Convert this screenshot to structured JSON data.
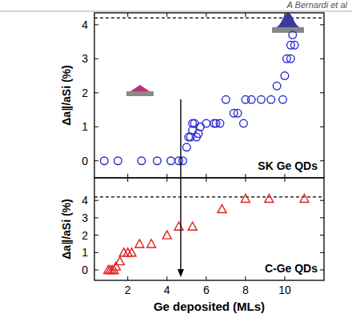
{
  "header": "A Bernardi et al",
  "chart_data": [
    {
      "type": "scatter",
      "ylabel": "Δa∥/aSi (%)",
      "annotation": "SK Ge QDs",
      "xlim": [
        0.3,
        12
      ],
      "xticks": [
        2,
        4,
        6,
        8,
        10
      ],
      "ylim": [
        -0.5,
        4.35
      ],
      "yticks": [
        0,
        1,
        2,
        3,
        4
      ],
      "tick_labels": "y",
      "reference_line": 4.2,
      "arrow_x": 4.7,
      "series": [
        {
          "name": "SK Ge QDs",
          "color": "#2b2bd0",
          "marker": "circle",
          "x": [
            0.8,
            1.5,
            2.7,
            3.5,
            4.2,
            4.6,
            4.8,
            5.0,
            5.1,
            5.2,
            5.3,
            5.3,
            5.4,
            5.5,
            5.6,
            5.7,
            6.0,
            6.4,
            6.5,
            6.7,
            7.0,
            7.4,
            7.6,
            7.9,
            8.0,
            8.3,
            8.8,
            9.3,
            9.6,
            9.9,
            10.0,
            10.1,
            10.3,
            10.3,
            10.4,
            10.5
          ],
          "values": [
            0,
            0,
            0,
            0,
            0,
            0,
            0,
            0.4,
            0.7,
            0.7,
            0.9,
            1.1,
            1.1,
            0.7,
            0.8,
            1.0,
            1.1,
            1.1,
            1.1,
            1.1,
            1.8,
            1.4,
            1.4,
            1.1,
            1.8,
            1.8,
            1.8,
            1.8,
            2.2,
            1.8,
            2.5,
            3.0,
            3.0,
            3.4,
            3.7,
            3.4
          ]
        }
      ]
    },
    {
      "type": "scatter",
      "ylabel": "Δa∥/aSi (%)",
      "xlabel": "Ge deposited (MLs)",
      "annotation": "C-Ge QDs",
      "xlim": [
        0.3,
        12
      ],
      "xticks": [
        2,
        4,
        6,
        8,
        10
      ],
      "ylim": [
        -0.6,
        5.3
      ],
      "yticks": [
        0,
        1,
        2,
        3,
        4
      ],
      "reference_line": 4.2,
      "series": [
        {
          "name": "C-Ge QDs",
          "color": "#e0201c",
          "marker": "triangle",
          "x": [
            1.0,
            1.1,
            1.2,
            1.3,
            1.4,
            1.6,
            1.8,
            2.0,
            2.2,
            2.6,
            3.2,
            4.0,
            4.6,
            5.3,
            6.8,
            8.0,
            9.2,
            11.0
          ],
          "values": [
            0,
            0,
            0,
            0,
            0.2,
            0.5,
            1.0,
            1.0,
            1.0,
            1.5,
            1.5,
            2.0,
            2.5,
            2.5,
            3.5,
            4.1,
            4.1,
            4.1
          ]
        }
      ]
    }
  ]
}
